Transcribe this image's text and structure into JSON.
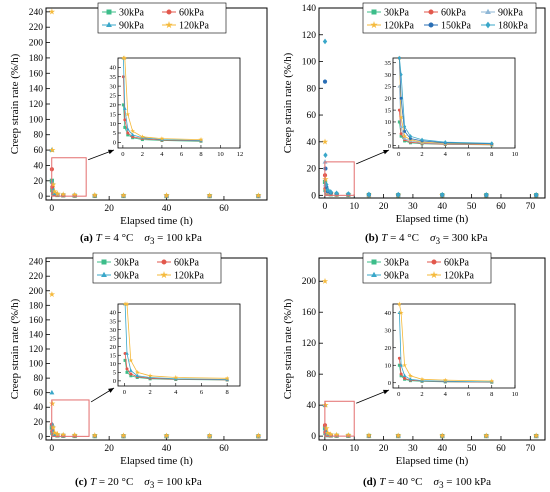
{
  "chart_data": [
    {
      "type": "scatter",
      "xlabel": "Elapsed time (h)",
      "ylabel": "Creep strain rate (%/h)",
      "xlim": [
        -2,
        75
      ],
      "ylim": [
        -5,
        245
      ],
      "xticks": [
        0,
        20,
        40,
        60
      ],
      "yticks": [
        0,
        20,
        40,
        60,
        80,
        100,
        120,
        140,
        160,
        180,
        200,
        220,
        240
      ],
      "legend": [
        "30kPa",
        "60kPa",
        "90kPa",
        "120kPa"
      ],
      "legend_columns": 2,
      "legend_position": "top-center",
      "series": [
        {
          "name": "30kPa",
          "color": "#3dbd8a",
          "marker": "square",
          "x": [
            0.05,
            0.2,
            0.5,
            1,
            2,
            4,
            8,
            15,
            25,
            40,
            55,
            72
          ],
          "y": [
            20,
            8,
            4,
            2.5,
            1.5,
            1,
            0.6,
            0.3,
            0.2,
            0.1,
            0.1,
            0.1
          ]
        },
        {
          "name": "60kPa",
          "color": "#e2574c",
          "marker": "circle",
          "x": [
            0.05,
            0.2,
            0.5,
            1,
            2,
            4,
            8,
            15,
            25,
            40,
            55,
            72
          ],
          "y": [
            35,
            12,
            5,
            3,
            2,
            1.2,
            0.8,
            0.4,
            0.3,
            0.2,
            0.1,
            0.1
          ]
        },
        {
          "name": "90kPa",
          "color": "#3aa7c9",
          "marker": "triangle",
          "x": [
            0.05,
            0.2,
            0.5,
            1,
            2,
            4,
            8,
            15,
            25,
            40,
            55,
            72
          ],
          "y": [
            60,
            18,
            7,
            4,
            2.5,
            1.5,
            1,
            0.6,
            0.4,
            0.3,
            0.2,
            0.2
          ]
        },
        {
          "name": "120kPa",
          "color": "#f5b93a",
          "marker": "star",
          "x": [
            0.05,
            0.2,
            0.5,
            1,
            2,
            4,
            8,
            15,
            25,
            40,
            55,
            72
          ],
          "y": [
            240,
            60,
            15,
            6,
            3,
            2,
            1.5,
            1.2,
            1,
            0.9,
            0.8,
            0.8
          ]
        }
      ],
      "zoom_box": {
        "x": [
          0,
          12
        ],
        "y": [
          0,
          50
        ]
      },
      "inset": {
        "xlim": [
          -0.5,
          12
        ],
        "ylim": [
          -3,
          45
        ],
        "xticks": [
          0,
          2,
          4,
          6,
          8,
          10,
          12
        ],
        "yticks": [
          0,
          5,
          10,
          15,
          20,
          25,
          30,
          35,
          40
        ]
      },
      "caption": {
        "label": "(a)",
        "var": "T",
        "cond": " = 4 °C",
        "sigma": "σ",
        "sub": "3",
        "stress": " = 100 kPa"
      }
    },
    {
      "type": "scatter",
      "xlabel": "Elapsed time (h)",
      "ylabel": "Creep strain rate (%/h)",
      "xlim": [
        -2,
        75
      ],
      "ylim": [
        -2,
        140
      ],
      "xticks": [
        0,
        10,
        20,
        30,
        40,
        50,
        60,
        70
      ],
      "yticks": [
        0,
        20,
        40,
        60,
        80,
        100,
        120,
        140
      ],
      "legend": [
        "30kPa",
        "60kPa",
        "90kPa",
        "120kPa",
        "150kPa",
        "180kPa"
      ],
      "legend_columns": 3,
      "legend_position": "top-center",
      "series": [
        {
          "name": "30kPa",
          "color": "#3dbd8a",
          "marker": "square",
          "x": [
            0.05,
            0.2,
            0.5,
            1,
            2,
            4,
            8,
            15,
            25,
            40,
            55,
            72
          ],
          "y": [
            10,
            4,
            2,
            1.2,
            0.8,
            0.5,
            0.3,
            0.2,
            0.1,
            0.1,
            0.1,
            0.1
          ]
        },
        {
          "name": "60kPa",
          "color": "#e2574c",
          "marker": "circle",
          "x": [
            0.05,
            0.2,
            0.5,
            1,
            2,
            4,
            8,
            15,
            25,
            40,
            55,
            72
          ],
          "y": [
            15,
            5,
            2.5,
            1.5,
            1,
            0.6,
            0.4,
            0.2,
            0.2,
            0.1,
            0.1,
            0.1
          ]
        },
        {
          "name": "90kPa",
          "color": "#8fb7d6",
          "marker": "triangle",
          "x": [
            0.05,
            0.2,
            0.5,
            1,
            2,
            4,
            8,
            15,
            25,
            40,
            55,
            72
          ],
          "y": [
            25,
            8,
            3,
            2,
            1.2,
            0.8,
            0.5,
            0.3,
            0.2,
            0.2,
            0.1,
            0.1
          ]
        },
        {
          "name": "120kPa",
          "color": "#f5b93a",
          "marker": "star",
          "x": [
            0.05,
            0.2,
            0.5,
            1,
            2,
            4,
            8,
            15,
            25,
            40,
            55,
            72
          ],
          "y": [
            40,
            12,
            4,
            2.5,
            1.5,
            1,
            0.6,
            0.4,
            0.3,
            0.2,
            0.2,
            0.2
          ]
        },
        {
          "name": "150kPa",
          "color": "#2a6fb5",
          "marker": "circle",
          "x": [
            0.05,
            0.2,
            0.5,
            1,
            2,
            4,
            8,
            15,
            25,
            40,
            55,
            72
          ],
          "y": [
            85,
            20,
            6,
            3,
            2,
            1.2,
            0.8,
            0.5,
            0.4,
            0.3,
            0.2,
            0.2
          ]
        },
        {
          "name": "180kPa",
          "color": "#3aa7c9",
          "marker": "diamond",
          "x": [
            0.05,
            0.2,
            0.5,
            1,
            2,
            4,
            8,
            15,
            25,
            40,
            55,
            72
          ],
          "y": [
            115,
            30,
            8,
            4,
            2.5,
            1.5,
            1,
            0.6,
            0.5,
            0.4,
            0.3,
            0.3
          ]
        }
      ],
      "zoom_box": {
        "x": [
          0,
          10
        ],
        "y": [
          0,
          25
        ]
      },
      "inset": {
        "xlim": [
          -0.5,
          10
        ],
        "ylim": [
          -1,
          37
        ],
        "xticks": [
          0,
          2,
          4,
          6,
          8,
          10
        ],
        "yticks": [
          0,
          5,
          10,
          15,
          20,
          25,
          30,
          35
        ]
      },
      "caption": {
        "label": "(b)",
        "var": "T",
        "cond": " = 4 °C",
        "sigma": "σ",
        "sub": "3",
        "stress": " = 300 kPa"
      }
    },
    {
      "type": "scatter",
      "xlabel": "Elapsed time (h)",
      "ylabel": "Creep strain rate (%/h)",
      "xlim": [
        -2,
        75
      ],
      "ylim": [
        -5,
        245
      ],
      "xticks": [
        0,
        20,
        40,
        60
      ],
      "yticks": [
        0,
        20,
        40,
        60,
        80,
        100,
        120,
        140,
        160,
        180,
        200,
        220,
        240
      ],
      "legend": [
        "30kPa",
        "60kPa",
        "90kPa",
        "120kPa"
      ],
      "legend_columns": 2,
      "legend_position": "top-center",
      "series": [
        {
          "name": "30kPa",
          "color": "#3dbd8a",
          "marker": "square",
          "x": [
            0.05,
            0.2,
            0.5,
            1,
            2,
            4,
            8,
            15,
            25,
            40,
            55,
            72
          ],
          "y": [
            12,
            5,
            3,
            2,
            1.2,
            0.8,
            0.5,
            0.3,
            0.2,
            0.2,
            0.1,
            0.1
          ]
        },
        {
          "name": "60kPa",
          "color": "#e2574c",
          "marker": "circle",
          "x": [
            0.05,
            0.2,
            0.5,
            1,
            2,
            4,
            8,
            15,
            25,
            40,
            55,
            72
          ],
          "y": [
            16,
            7,
            4,
            2.5,
            1.5,
            1,
            0.6,
            0.4,
            0.3,
            0.2,
            0.2,
            0.2
          ]
        },
        {
          "name": "90kPa",
          "color": "#3aa7c9",
          "marker": "triangle",
          "x": [
            0.05,
            0.2,
            0.5,
            1,
            2,
            4,
            8,
            15,
            25,
            40,
            55,
            72
          ],
          "y": [
            60,
            16,
            6,
            3,
            2,
            1.2,
            0.8,
            0.5,
            0.4,
            0.3,
            0.3,
            0.3
          ]
        },
        {
          "name": "120kPa",
          "color": "#f5b93a",
          "marker": "star",
          "x": [
            0.05,
            0.2,
            0.5,
            1,
            2,
            4,
            8,
            15,
            25,
            40,
            55,
            72
          ],
          "y": [
            195,
            45,
            12,
            5,
            3,
            2,
            1.5,
            1.2,
            1,
            0.9,
            0.8,
            0.8
          ]
        }
      ],
      "zoom_box": {
        "x": [
          0,
          13
        ],
        "y": [
          0,
          50
        ]
      },
      "inset": {
        "xlim": [
          -0.5,
          9
        ],
        "ylim": [
          -3,
          45
        ],
        "xticks": [
          0,
          2,
          4,
          6,
          8
        ],
        "yticks": [
          0,
          5,
          10,
          15,
          20,
          25,
          30,
          35,
          40
        ]
      },
      "caption": {
        "label": "(c)",
        "var": "T",
        "cond": " = 20 °C",
        "sigma": "σ",
        "sub": "3",
        "stress": " = 100 kPa"
      }
    },
    {
      "type": "scatter",
      "xlabel": "Elapsed time (h)",
      "ylabel": "Creep strain rate (%/h)",
      "xlim": [
        -2,
        75
      ],
      "ylim": [
        -5,
        230
      ],
      "xticks": [
        0,
        10,
        20,
        30,
        40,
        50,
        60,
        70
      ],
      "yticks": [
        0,
        40,
        80,
        120,
        160,
        200
      ],
      "legend": [
        "30kPa",
        "60kPa",
        "90kPa",
        "120kPa"
      ],
      "legend_columns": 2,
      "legend_position": "top-center",
      "series": [
        {
          "name": "30kPa",
          "color": "#3dbd8a",
          "marker": "square",
          "x": [
            0.05,
            0.2,
            0.5,
            1,
            2,
            4,
            8,
            15,
            25,
            40,
            55,
            72
          ],
          "y": [
            10,
            4,
            2,
            1.2,
            0.8,
            0.5,
            0.3,
            0.2,
            0.1,
            0.1,
            0.1,
            0.1
          ]
        },
        {
          "name": "60kPa",
          "color": "#e2574c",
          "marker": "circle",
          "x": [
            0.05,
            0.2,
            0.5,
            1,
            2,
            4,
            8,
            15,
            25,
            40,
            55,
            72
          ],
          "y": [
            14,
            5,
            2.5,
            1.5,
            1,
            0.6,
            0.4,
            0.2,
            0.2,
            0.1,
            0.1,
            0.1
          ]
        },
        {
          "name": "90kPa",
          "color": "#3aa7c9",
          "marker": "triangle",
          "x": [
            0.05,
            0.2,
            0.5,
            1,
            2,
            4,
            8,
            15,
            25,
            40,
            55,
            72
          ],
          "y": [
            40,
            10,
            4,
            2,
            1.2,
            0.8,
            0.5,
            0.3,
            0.2,
            0.2,
            0.1,
            0.1
          ]
        },
        {
          "name": "120kPa",
          "color": "#f5b93a",
          "marker": "star",
          "x": [
            0.05,
            0.2,
            0.5,
            1,
            2,
            4,
            8,
            15,
            25,
            40,
            55,
            72
          ],
          "y": [
            200,
            40,
            10,
            4,
            2,
            1.5,
            1,
            0.8,
            0.6,
            0.5,
            0.5,
            0.5
          ]
        }
      ],
      "zoom_box": {
        "x": [
          0,
          10
        ],
        "y": [
          0,
          45
        ]
      },
      "inset": {
        "xlim": [
          -0.5,
          10
        ],
        "ylim": [
          -3,
          45
        ],
        "xticks": [
          0,
          2,
          4,
          6,
          8,
          10
        ],
        "yticks": [
          0,
          10,
          20,
          30,
          40
        ]
      },
      "caption": {
        "label": "(d)",
        "var": "T",
        "cond": " = 40 °C",
        "sigma": "σ",
        "sub": "3",
        "stress": " = 100 kPa"
      }
    }
  ]
}
